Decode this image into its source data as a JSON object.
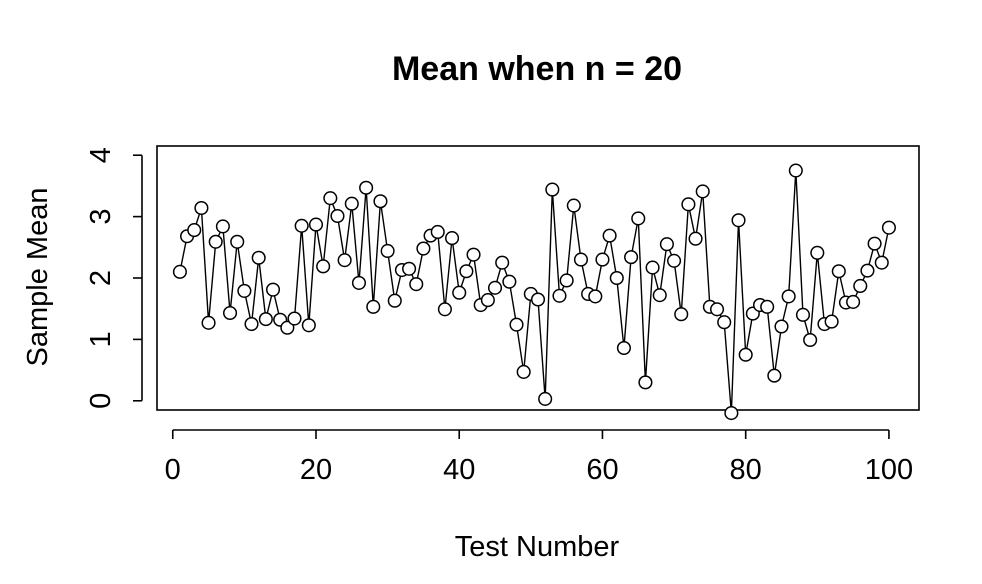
{
  "chart_data": {
    "type": "line",
    "markers": "open-circle",
    "title": "Mean when n = 20",
    "xlabel": "Test Number",
    "ylabel": "Sample Mean",
    "xlim": [
      -2.2,
      104.2
    ],
    "ylim": [
      -0.15,
      4.15
    ],
    "xticks": [
      0,
      20,
      40,
      60,
      80,
      100
    ],
    "yticks": [
      0,
      1,
      2,
      3,
      4
    ],
    "grid": false,
    "legend": "none",
    "line_color": "#000000",
    "series": [
      {
        "x": [
          1,
          2,
          3,
          4,
          5,
          6,
          7,
          8,
          9,
          10,
          11,
          12,
          13,
          14,
          15,
          16,
          17,
          18,
          19,
          20,
          21,
          22,
          23,
          24,
          25,
          26,
          27,
          28,
          29,
          30,
          31,
          32,
          33,
          34,
          35,
          36,
          37,
          38,
          39,
          40,
          41,
          42,
          43,
          44,
          45,
          46,
          47,
          48,
          49,
          50,
          51,
          52,
          53,
          54,
          55,
          56,
          57,
          58,
          59,
          60,
          61,
          62,
          63,
          64,
          65,
          66,
          67,
          68,
          69,
          70,
          71,
          72,
          73,
          74,
          75,
          76,
          77,
          78,
          79,
          80,
          81,
          82,
          83,
          84,
          85,
          86,
          87,
          88,
          89,
          90,
          91,
          92,
          93,
          94,
          95,
          96,
          97,
          98,
          99,
          100
        ],
        "values": [
          2.1,
          2.68,
          2.78,
          3.14,
          1.27,
          2.59,
          2.84,
          1.43,
          2.59,
          1.79,
          1.25,
          2.33,
          1.33,
          1.81,
          1.32,
          1.19,
          1.34,
          2.85,
          1.23,
          2.87,
          2.19,
          3.3,
          3.01,
          2.29,
          3.21,
          1.92,
          3.47,
          1.53,
          3.25,
          2.44,
          1.63,
          2.13,
          2.15,
          1.9,
          2.48,
          2.69,
          2.75,
          1.49,
          2.65,
          1.76,
          2.11,
          2.38,
          1.56,
          1.64,
          1.84,
          2.25,
          1.94,
          1.24,
          0.47,
          1.74,
          1.65,
          0.03,
          3.44,
          1.71,
          1.96,
          3.18,
          2.3,
          1.74,
          1.7,
          2.3,
          2.69,
          2.0,
          0.86,
          2.34,
          2.97,
          0.3,
          2.17,
          1.72,
          2.55,
          2.28,
          1.41,
          3.2,
          2.64,
          3.41,
          1.53,
          1.49,
          1.28,
          -0.2,
          2.94,
          0.75,
          1.42,
          1.56,
          1.53,
          0.41,
          1.21,
          1.7,
          3.75,
          1.4,
          0.99,
          2.41,
          1.25,
          1.29,
          2.11,
          1.6,
          1.61,
          1.87,
          2.12,
          2.56,
          2.25,
          2.82
        ]
      }
    ]
  }
}
